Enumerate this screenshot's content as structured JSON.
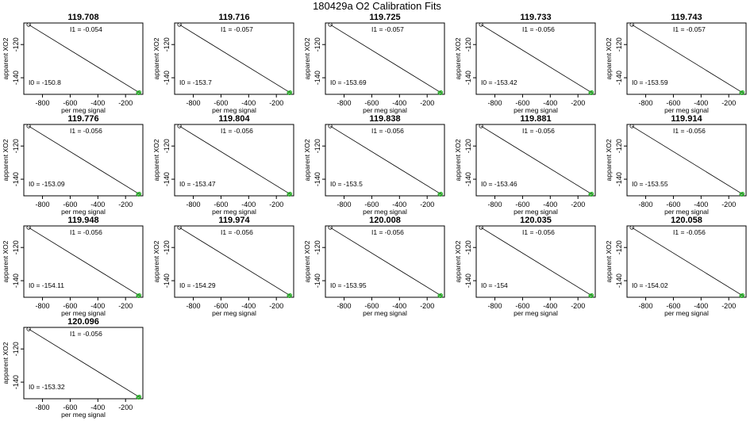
{
  "page": {
    "title": "180429a   O2 Calibration Fits"
  },
  "chart_data": {
    "type": "scatter",
    "xlabel": "per meg signal",
    "ylabel": "apparent XO2",
    "xlim": [
      -935,
      -75
    ],
    "ylim": [
      -150,
      -107
    ],
    "x_ticks": [
      -800,
      -600,
      -400,
      -200
    ],
    "y_ticks": [
      -140,
      -120
    ],
    "colors": {
      "points": "#22aa22",
      "line": "#000000",
      "open_point": "#000000"
    },
    "panels": [
      {
        "title": "119.708",
        "I1": "-0.054",
        "I0": "-150.8"
      },
      {
        "title": "119.716",
        "I1": "-0.057",
        "I0": "-153.7"
      },
      {
        "title": "119.725",
        "I1": "-0.057",
        "I0": "-153.69"
      },
      {
        "title": "119.733",
        "I1": "-0.056",
        "I0": "-153.42"
      },
      {
        "title": "119.743",
        "I1": "-0.057",
        "I0": "-153.59"
      },
      {
        "title": "119.776",
        "I1": "-0.056",
        "I0": "-153.09"
      },
      {
        "title": "119.804",
        "I1": "-0.056",
        "I0": "-153.47"
      },
      {
        "title": "119.838",
        "I1": "-0.056",
        "I0": "-153.5"
      },
      {
        "title": "119.881",
        "I1": "-0.056",
        "I0": "-153.46"
      },
      {
        "title": "119.914",
        "I1": "-0.056",
        "I0": "-153.55"
      },
      {
        "title": "119.948",
        "I1": "-0.056",
        "I0": "-154.11"
      },
      {
        "title": "119.974",
        "I1": "-0.056",
        "I0": "-154.29"
      },
      {
        "title": "120.008",
        "I1": "-0.056",
        "I0": "-153.95"
      },
      {
        "title": "120.035",
        "I1": "-0.056",
        "I0": "-154"
      },
      {
        "title": "120.058",
        "I1": "-0.056",
        "I0": "-154.02"
      },
      {
        "title": "120.096",
        "I1": "-0.056",
        "I0": "-153.32"
      }
    ],
    "points": {
      "open": {
        "x": -900,
        "y": -108
      },
      "green": [
        {
          "x": -110,
          "y": -149
        },
        {
          "x": -105,
          "y": -149.3
        },
        {
          "x": -100,
          "y": -148.8
        }
      ]
    },
    "fit_line": {
      "x": [
        -900,
        -100
      ],
      "y": [
        -108,
        -149
      ]
    }
  }
}
